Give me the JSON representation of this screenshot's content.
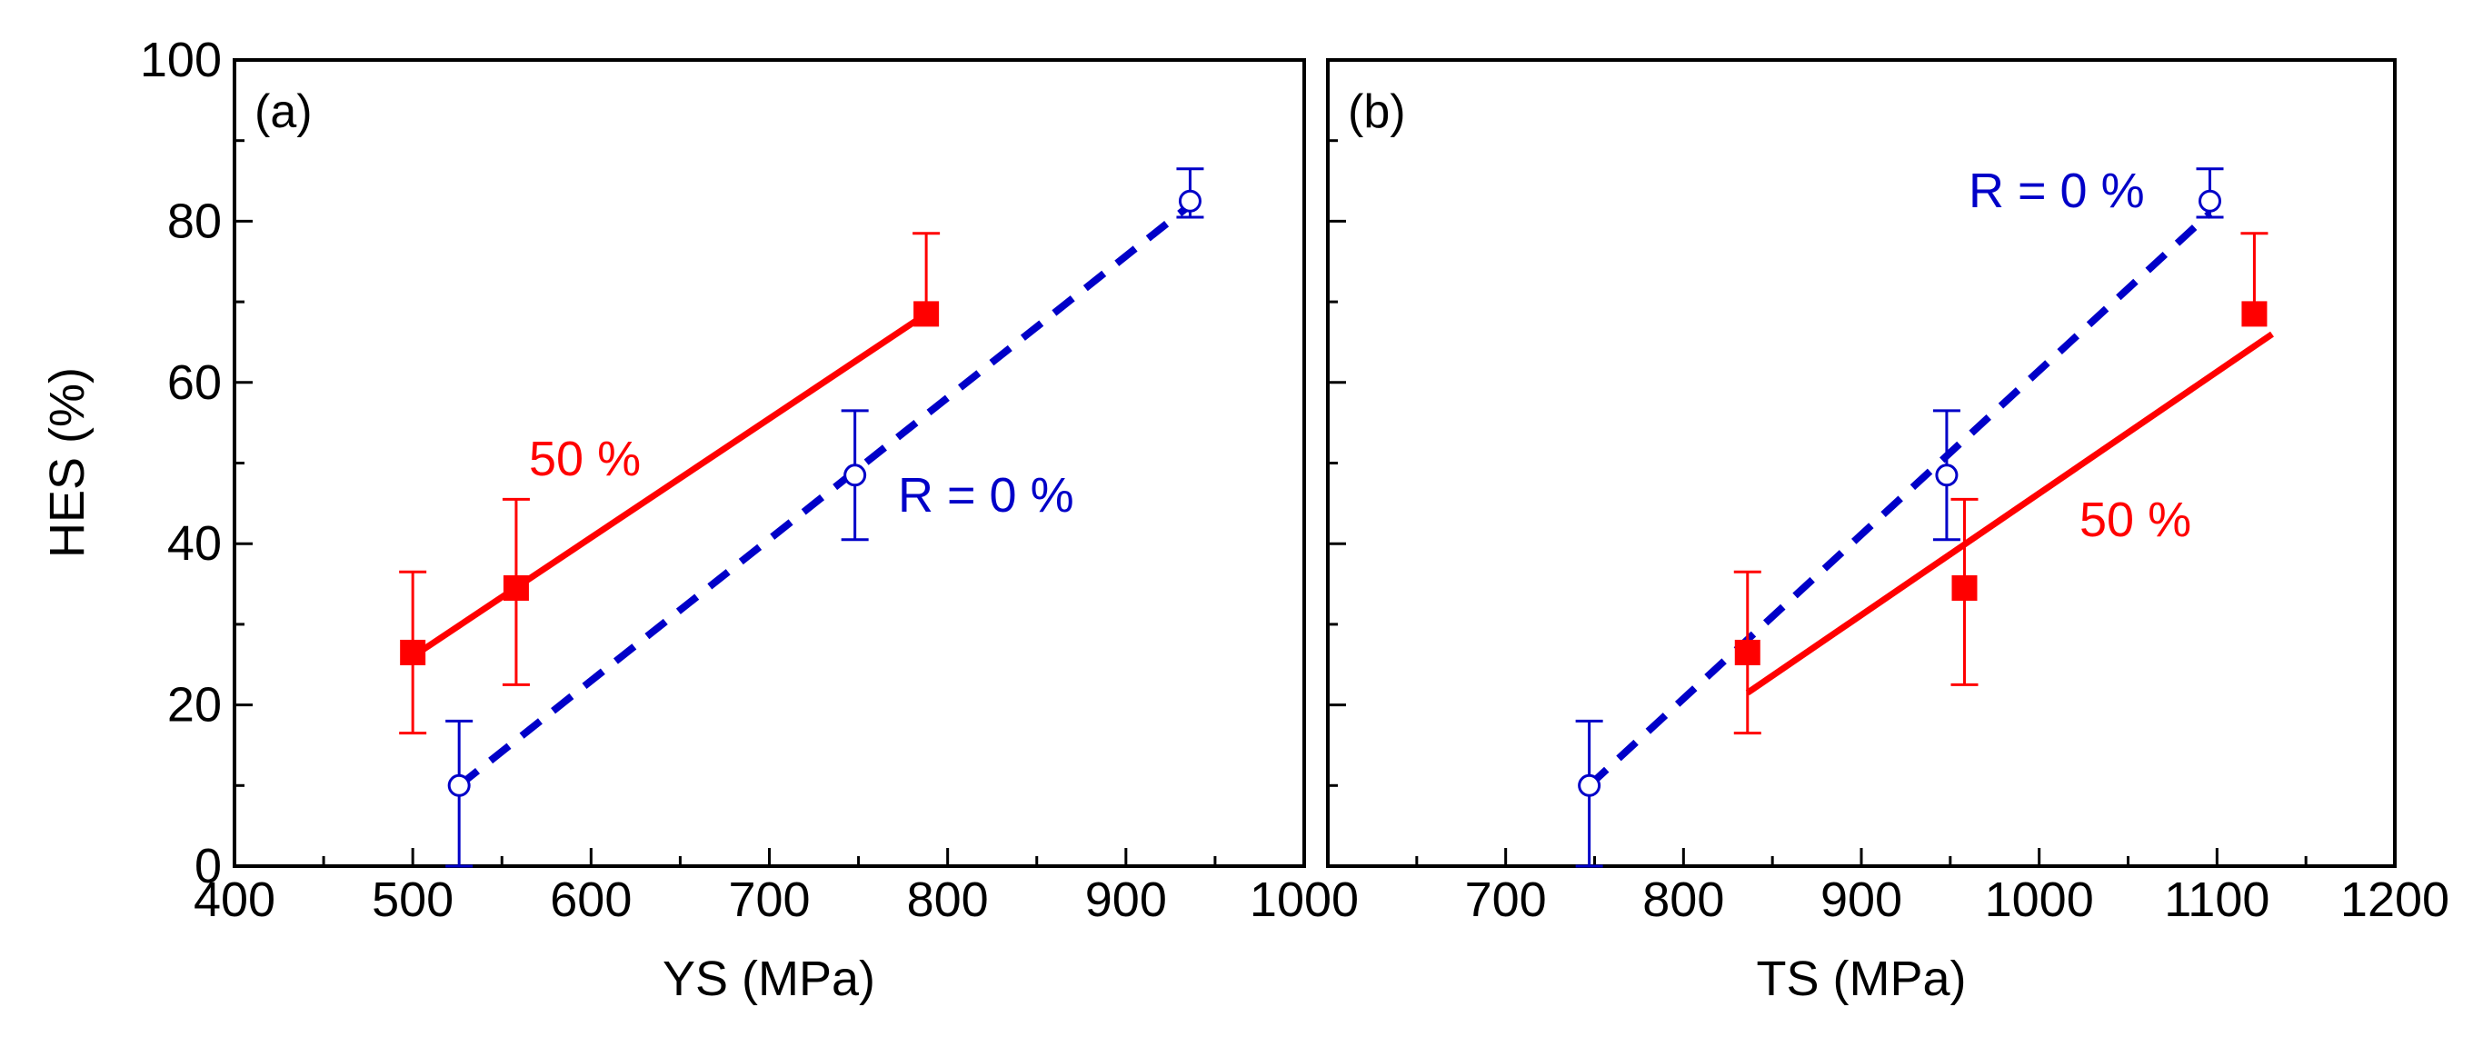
{
  "chart_data": [
    {
      "type": "scatter",
      "panel_label": "(a)",
      "xlabel": "YS (MPa)",
      "ylabel": "HES (%)",
      "xlim": [
        400,
        1000
      ],
      "ylim": [
        0,
        100
      ],
      "x_ticks": [
        "400",
        "500",
        "600",
        "700",
        "800",
        "900",
        "1000"
      ],
      "y_ticks": [
        "0",
        "20",
        "40",
        "60",
        "80",
        "100"
      ],
      "series": [
        {
          "name": "R = 0 %",
          "color": "#0000c8",
          "marker": "open-circle",
          "fit_line": "dashed",
          "x": [
            526,
            748,
            936
          ],
          "y": [
            10,
            48.5,
            82.5
          ],
          "err_low": [
            10,
            8,
            2
          ],
          "err_high": [
            8,
            8,
            4
          ],
          "fit_x": [
            526,
            936
          ],
          "fit_y": [
            10,
            82
          ]
        },
        {
          "name": "50 %",
          "color": "#ff0000",
          "marker": "filled-square",
          "fit_line": "solid",
          "x": [
            500,
            558,
            788
          ],
          "y": [
            26.5,
            34.5,
            68.5
          ],
          "err_low": [
            10,
            12,
            0
          ],
          "err_high": [
            10,
            11,
            10
          ],
          "fit_x": [
            500,
            788
          ],
          "fit_y": [
            26,
            68.5
          ]
        }
      ],
      "annotations": [
        {
          "text": "50 %",
          "color": "#ff0000"
        },
        {
          "text": "R = 0 %",
          "color": "#0000c8"
        }
      ]
    },
    {
      "type": "scatter",
      "panel_label": "(b)",
      "xlabel": "TS (MPa)",
      "ylabel": "",
      "xlim": [
        600,
        1200
      ],
      "ylim": [
        0,
        100
      ],
      "x_ticks": [
        "700",
        "800",
        "900",
        "1000",
        "1100",
        "1200"
      ],
      "y_ticks": [
        "0",
        "20",
        "40",
        "60",
        "80",
        "100"
      ],
      "series": [
        {
          "name": "R = 0 %",
          "color": "#0000c8",
          "marker": "open-circle",
          "fit_line": "dashed",
          "x": [
            747,
            948,
            1096
          ],
          "y": [
            10,
            48.5,
            82.5
          ],
          "err_low": [
            10,
            8,
            2
          ],
          "err_high": [
            8,
            8,
            4
          ],
          "fit_x": [
            747,
            1096
          ],
          "fit_y": [
            10,
            81
          ]
        },
        {
          "name": "50 %",
          "color": "#ff0000",
          "marker": "filled-square",
          "fit_line": "solid",
          "x": [
            836,
            958,
            1121
          ],
          "y": [
            26.5,
            34.5,
            68.5
          ],
          "err_low": [
            10,
            12,
            0
          ],
          "err_high": [
            10,
            11,
            10
          ],
          "fit_x": [
            836,
            1131
          ],
          "fit_y": [
            21.5,
            66
          ]
        }
      ],
      "annotations": [
        {
          "text": "R = 0 %",
          "color": "#0000c8"
        },
        {
          "text": "50 %",
          "color": "#ff0000"
        }
      ]
    }
  ]
}
